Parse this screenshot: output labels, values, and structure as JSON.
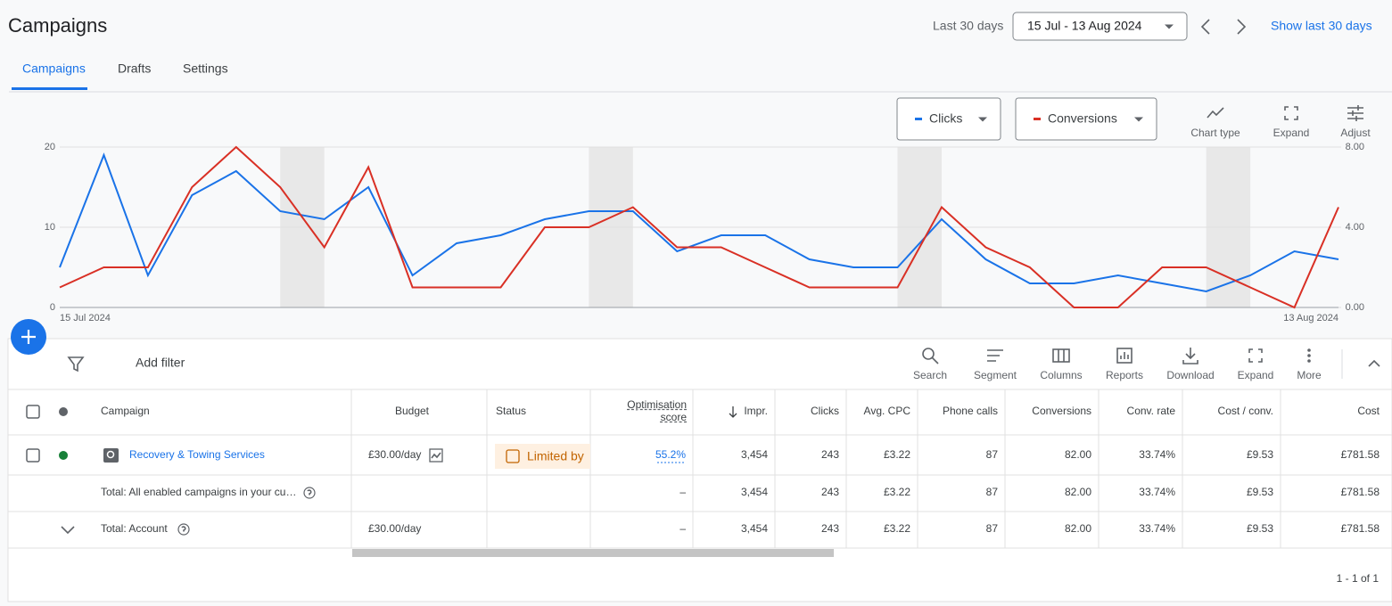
{
  "header": {
    "title": "Campaigns",
    "date_preset": "Last 30 days",
    "date_range": "15 Jul - 13 Aug 2024",
    "show_last": "Show last 30 days"
  },
  "tabs": [
    "Campaigns",
    "Drafts",
    "Settings"
  ],
  "chart_tools": [
    "Chart type",
    "Expand",
    "Adjust"
  ],
  "chart_data": {
    "type": "line",
    "categories": [
      "15 Jul 2024",
      null,
      null,
      null,
      null,
      null,
      null,
      null,
      null,
      null,
      null,
      null,
      null,
      null,
      null,
      null,
      null,
      null,
      null,
      null,
      null,
      null,
      null,
      null,
      null,
      null,
      null,
      null,
      null,
      "13 Aug 2024"
    ],
    "series": [
      {
        "name": "Clicks",
        "color": "#1a73e8",
        "values": [
          5,
          19,
          4,
          14,
          17,
          12,
          11,
          15,
          4,
          8,
          9,
          11,
          12,
          12,
          7,
          9,
          9,
          6,
          5,
          5,
          11,
          6,
          3,
          3,
          4,
          3,
          2,
          4,
          7,
          6
        ]
      },
      {
        "name": "Conversions",
        "color": "#d93025",
        "axis": "y2",
        "values": [
          1,
          2,
          2,
          6,
          8,
          6,
          3,
          7,
          1,
          1,
          1,
          4,
          4,
          5,
          3,
          3,
          2,
          1,
          1,
          1,
          5,
          3,
          2,
          0,
          0,
          2,
          2,
          1,
          0,
          5
        ]
      }
    ],
    "ylim": [
      0,
      20
    ],
    "yticks": [
      0,
      10,
      20
    ],
    "y2lim": [
      0,
      8
    ],
    "y2ticks": [
      {
        "value": 0,
        "label": "0.00"
      },
      {
        "value": 4,
        "label": "4.00"
      },
      {
        "value": 8,
        "label": "8.00"
      }
    ],
    "grid": true
  },
  "toolbar": {
    "filter": "Add filter",
    "tools": [
      "Search",
      "Segment",
      "Columns",
      "Reports",
      "Download",
      "Expand",
      "More"
    ]
  },
  "table": {
    "columns": [
      "Campaign",
      "Budget",
      "Status",
      "Optimisation score",
      "Impr.",
      "Clicks",
      "Avg. CPC",
      "Phone calls",
      "Conversions",
      "Conv. rate",
      "Cost / conv.",
      "Cost"
    ],
    "rows": [
      [
        "Recovery & Towing Services",
        "£30.00/day",
        "Limited by",
        "55.2%",
        "3,454",
        "243",
        "£3.22",
        "87",
        "82.00",
        "33.74%",
        "£9.53",
        "£781.58"
      ],
      [
        "Total: All enabled campaigns in your cu…",
        null,
        null,
        "–",
        "3,454",
        "243",
        "£3.22",
        "87",
        "82.00",
        "33.74%",
        "£9.53",
        "£781.58"
      ],
      [
        "Total: Account",
        "£30.00/day",
        null,
        "–",
        "3,454",
        "243",
        "£3.22",
        "87",
        "82.00",
        "33.74%",
        "£9.53",
        "£781.58"
      ]
    ]
  },
  "pagination": "1 - 1 of 1"
}
